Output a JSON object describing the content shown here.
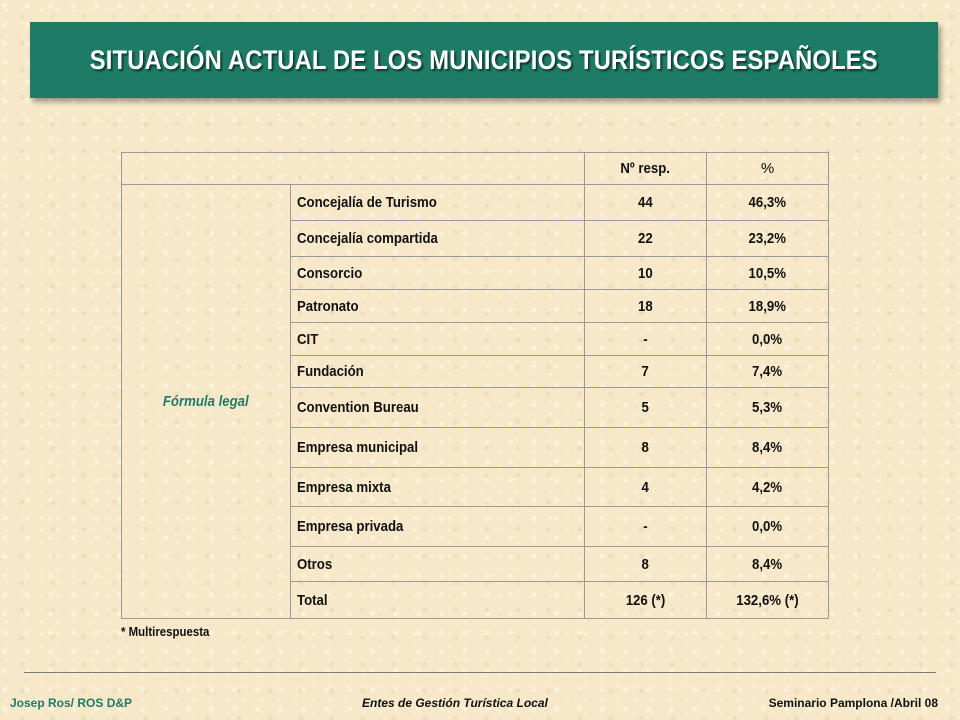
{
  "title": "SITUACIÓN ACTUAL DE LOS MUNICIPIOS TURÍSTICOS ESPAÑOLES",
  "table": {
    "header_resp": "Nº resp.",
    "header_pct": "%",
    "row_label": "Fórmula legal",
    "rows": [
      {
        "name": "Concejalía de Turismo",
        "resp": "44",
        "pct": "46,3%"
      },
      {
        "name": "Concejalía compartida",
        "resp": "22",
        "pct": "23,2%"
      },
      {
        "name": "Consorcio",
        "resp": "10",
        "pct": "10,5%"
      },
      {
        "name": "Patronato",
        "resp": "18",
        "pct": "18,9%"
      },
      {
        "name": "CIT",
        "resp": "-",
        "pct": "0,0%"
      },
      {
        "name": "Fundación",
        "resp": "7",
        "pct": "7,4%"
      },
      {
        "name": "Convention Bureau",
        "resp": "5",
        "pct": "5,3%"
      },
      {
        "name": "Empresa municipal",
        "resp": "8",
        "pct": "8,4%"
      },
      {
        "name": "Empresa mixta",
        "resp": "4",
        "pct": "4,2%"
      },
      {
        "name": "Empresa privada",
        "resp": "-",
        "pct": "0,0%"
      },
      {
        "name": "Otros",
        "resp": "8",
        "pct": "8,4%"
      },
      {
        "name": "Total",
        "resp": "126 (*)",
        "pct": "132,6% (*)"
      }
    ]
  },
  "footnote": "* Multirespuesta",
  "footer": {
    "left": "Josep Ros/ ROS D&P",
    "center": "Entes de Gestión Turística Local",
    "right": "Seminario Pamplona /Abril 08"
  },
  "colors": {
    "accent": "#1e7b66",
    "background": "#f6e8c8"
  }
}
